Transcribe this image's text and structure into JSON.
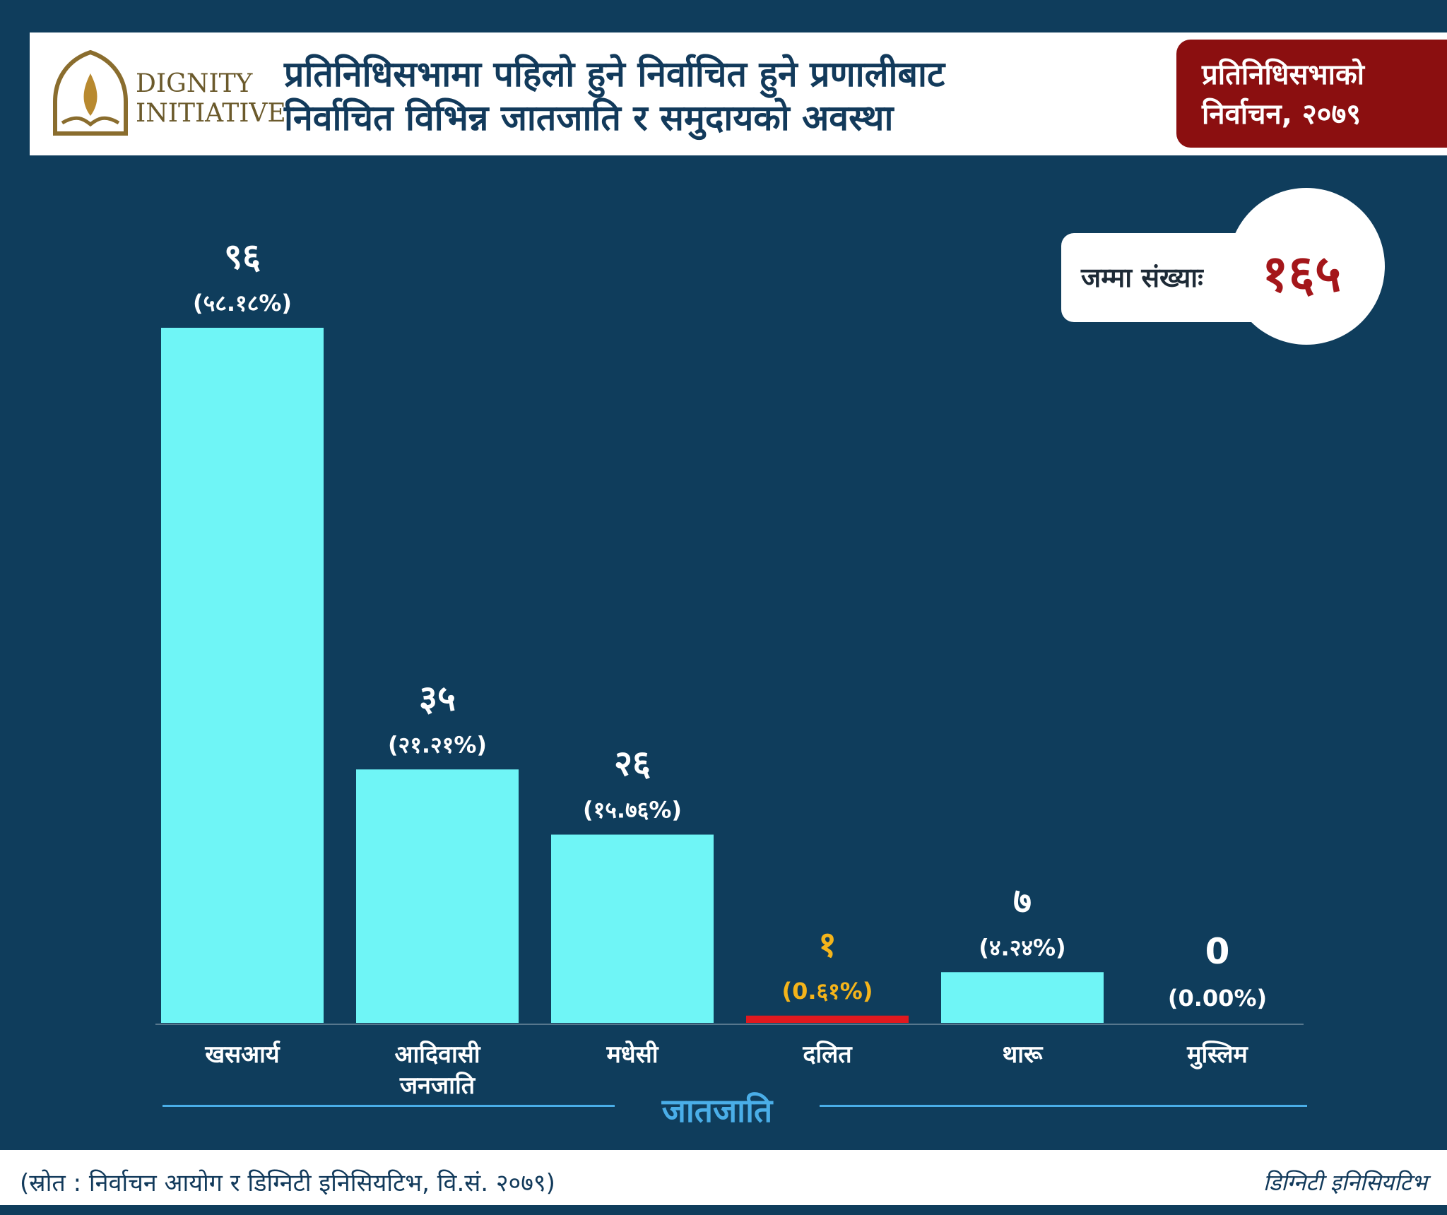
{
  "header": {
    "logo_text_line1": "DIGNITY",
    "logo_text_line2": "INITIATIVE",
    "title_line1": "प्रतिनिधिसभामा पहिलो हुने निर्वाचित हुने प्रणालीबाट",
    "title_line2": "निर्वाचित विभिन्न जातजाति र समुदायको अवस्था",
    "badge_line1": "प्रतिनिधिसभाको",
    "badge_line2": "निर्वाचन, २०७९"
  },
  "total": {
    "label": "जम्मा संख्याः",
    "value": "१६५"
  },
  "chart_data": {
    "type": "bar",
    "xlabel": "जातजाति",
    "categories": [
      [
        "खसआर्य"
      ],
      [
        "आदिवासी",
        "जनजाति"
      ],
      [
        "मधेसी"
      ],
      [
        "दलित"
      ],
      [
        "थारू"
      ],
      [
        "मुस्लिम"
      ]
    ],
    "values": [
      96,
      35,
      26,
      1,
      7,
      0
    ],
    "value_labels": [
      "९६",
      "३५",
      "२६",
      "१",
      "७",
      "0"
    ],
    "percent_labels": [
      "(५८.१८%)",
      "(२१.२१%)",
      "(१५.७६%)",
      "(0.६१%)",
      "(४.२४%)",
      "(0.00%)"
    ],
    "bar_colors": [
      "#6ff5f6",
      "#6ff5f6",
      "#6ff5f6",
      "#e0191f",
      "#6ff5f6",
      "#6ff5f6"
    ],
    "label_colors": [
      "#ffffff",
      "#ffffff",
      "#ffffff",
      "#f4b41a",
      "#ffffff",
      "#ffffff"
    ],
    "ylim": [
      0,
      96
    ]
  },
  "footer": {
    "source": "(स्रोत : निर्वाचन आयोग र डिग्निटी इनिसियटिभ, वि.सं. २०७९)",
    "brand": "डिग्निटी इनिसियटिभ"
  }
}
